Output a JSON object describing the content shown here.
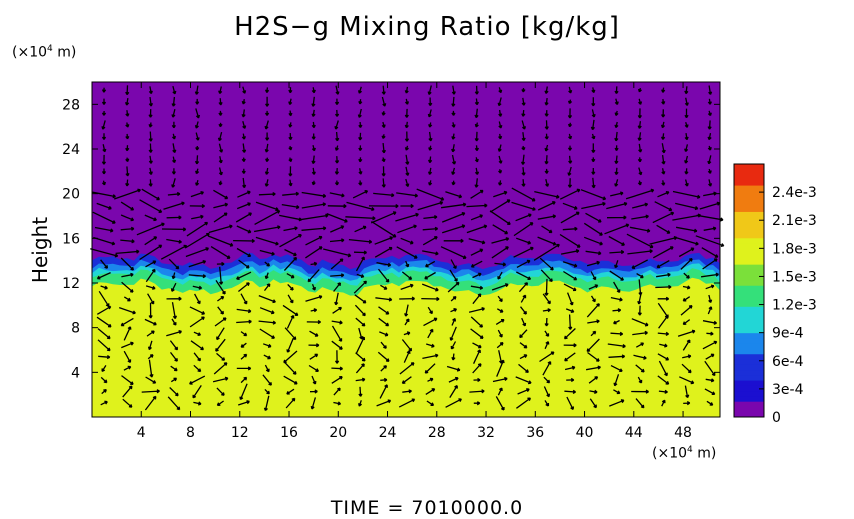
{
  "chart_data": {
    "type": "heatmap",
    "title": "H2S−g Mixing Ratio [kg/kg]",
    "ylabel": "Height",
    "y_unit_prefix": "(×10",
    "y_unit_exp": "4",
    "y_unit_suffix": " m)",
    "x_unit_prefix": "(×10",
    "x_unit_exp": "4",
    "x_unit_suffix": " m)",
    "xlim": [
      0,
      51
    ],
    "ylim": [
      0,
      30
    ],
    "x_ticks": [
      "4",
      "8",
      "12",
      "16",
      "20",
      "24",
      "28",
      "32",
      "36",
      "40",
      "44",
      "48"
    ],
    "y_ticks": [
      "4",
      "8",
      "12",
      "16",
      "20",
      "24",
      "28"
    ],
    "colorbar_labels": [
      "2.4e-3",
      "2.1e-3",
      "1.8e-3",
      "1.5e-3",
      "1.2e-3",
      "9e-4",
      "6e-4",
      "3e-4",
      "0"
    ],
    "colorbar_range": [
      0,
      0.0027
    ],
    "colors": {
      "background_upper": "#7a06ad",
      "lower_layer": "#dff21c",
      "transition_band": [
        "#1b2fd8",
        "#1b86ec",
        "#22d6d6",
        "#34e07a"
      ]
    },
    "layer_top_height": 12,
    "footer_label": "TIME  =  7010000.0"
  }
}
